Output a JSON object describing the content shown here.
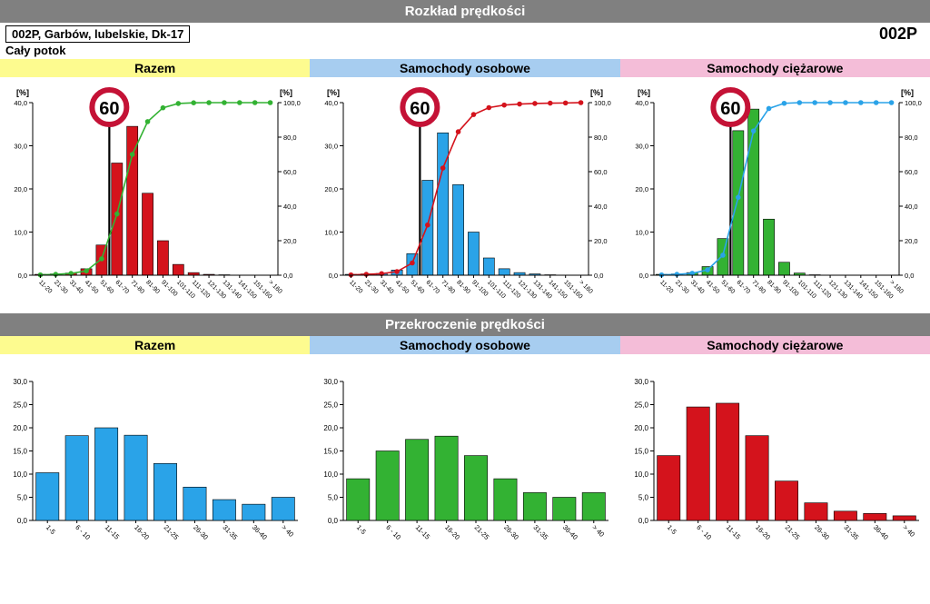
{
  "section1": {
    "title": "Rozkład prędkości"
  },
  "section2": {
    "title": "Przekroczenie prędkości"
  },
  "location": {
    "box": "002P, Garbów, lubelskie, Dk-17",
    "code": "002P",
    "subtitle": "Cały potok"
  },
  "column_headers": {
    "bg_colors": [
      "#fdfb8f",
      "#a7cdf0",
      "#f4bdd8"
    ],
    "labels": [
      "Razem",
      "Samochody osobowe",
      "Samochody ciężarowe"
    ]
  },
  "speed_limit_sign": {
    "value": "60",
    "ring": "#c41236",
    "text": "#000"
  },
  "top_charts": {
    "categories": [
      "11-20",
      "21-30",
      "31-40",
      "41-50",
      "51-60",
      "61-70",
      "71-80",
      "81-90",
      "91-100",
      "101-110",
      "111-120",
      "121-130",
      "131-140",
      "141-150",
      "151-160",
      "> 160"
    ],
    "y1_label": "[%]",
    "y2_label": "[%]",
    "y1_max": 40,
    "y1_ticks": [
      "0,0",
      "10,0",
      "20,0",
      "30,0",
      "40,0"
    ],
    "y2_max": 100,
    "y2_ticks": [
      "0,0",
      "20,0",
      "40,0",
      "60,0",
      "80,0",
      "100,0"
    ],
    "limit_at_category_index": 4,
    "panels": [
      {
        "bar_color": "#d4131c",
        "line_color": "#33b233",
        "bars": [
          0.2,
          0.3,
          0.5,
          1.5,
          7.0,
          26.0,
          34.5,
          19.0,
          8.0,
          2.5,
          0.6,
          0.2,
          0.1,
          0.0,
          0.0,
          0.0
        ],
        "cumulative": [
          0.2,
          0.5,
          1.0,
          2.5,
          9.5,
          35.5,
          70.0,
          89.0,
          97.0,
          99.5,
          99.9,
          100,
          100,
          100,
          100,
          100
        ]
      },
      {
        "bar_color": "#2aa3e8",
        "line_color": "#d4131c",
        "bars": [
          0.2,
          0.3,
          0.4,
          1.2,
          5.0,
          22.0,
          33.0,
          21.0,
          10.0,
          4.0,
          1.5,
          0.6,
          0.3,
          0.1,
          0.0,
          0.0
        ],
        "cumulative": [
          0.2,
          0.5,
          0.9,
          2.1,
          7.1,
          29.1,
          62.1,
          83.1,
          93.1,
          97.1,
          98.6,
          99.2,
          99.5,
          99.7,
          99.8,
          100
        ]
      },
      {
        "bar_color": "#33b233",
        "line_color": "#2aa3e8",
        "bars": [
          0.2,
          0.3,
          0.6,
          2.0,
          8.5,
          33.5,
          38.5,
          13.0,
          3.0,
          0.5,
          0.1,
          0.0,
          0.0,
          0.0,
          0.0,
          0.0
        ],
        "cumulative": [
          0.2,
          0.5,
          1.1,
          3.1,
          11.6,
          45.1,
          83.6,
          96.6,
          99.6,
          100,
          100,
          100,
          100,
          100,
          100,
          100
        ]
      }
    ],
    "axis_color": "#000",
    "bg": "#fff",
    "label_fontsize": 9,
    "tick_fontsize": 7.5
  },
  "bottom_charts": {
    "categories": [
      "1-5",
      "6 - 10",
      "11-15",
      "16-20",
      "21-25",
      "26-30",
      "31-35",
      "36-40",
      "> 40"
    ],
    "y_max": 30,
    "y_ticks": [
      "0,0",
      "5,0",
      "10,0",
      "15,0",
      "20,0",
      "25,0",
      "30,0"
    ],
    "panels": [
      {
        "bar_color": "#2aa3e8",
        "values": [
          10.3,
          18.3,
          20.0,
          18.4,
          12.3,
          7.2,
          4.5,
          3.5,
          5.0
        ]
      },
      {
        "bar_color": "#33b233",
        "values": [
          9.0,
          15.0,
          17.5,
          18.2,
          14.0,
          9.0,
          6.0,
          5.0,
          6.0
        ]
      },
      {
        "bar_color": "#d4131c",
        "values": [
          14.0,
          24.5,
          25.3,
          18.3,
          8.5,
          3.8,
          2.0,
          1.5,
          1.0
        ]
      }
    ],
    "axis_color": "#000",
    "tick_fontsize": 8
  }
}
